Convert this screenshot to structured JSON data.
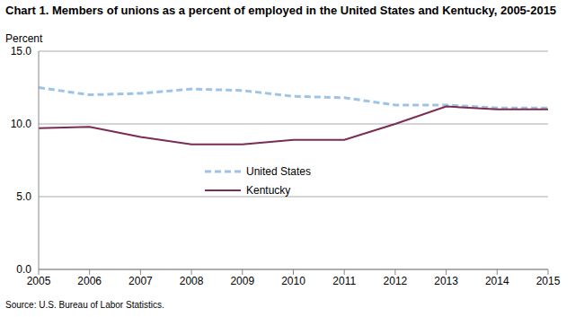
{
  "chart_data": {
    "type": "line",
    "title": "Chart 1. Members of unions as a percent of employed in the United States and Kentucky, 2005-2015",
    "y_label": "Percent",
    "source": "Source: U.S. Bureau of Labor Statistics.",
    "x": [
      2005,
      2006,
      2007,
      2008,
      2009,
      2010,
      2011,
      2012,
      2013,
      2014,
      2015
    ],
    "xlim": [
      2005,
      2015
    ],
    "xticks": [
      2005,
      2006,
      2007,
      2008,
      2009,
      2010,
      2011,
      2012,
      2013,
      2014,
      2015
    ],
    "ylim": [
      0,
      15
    ],
    "yticks": [
      {
        "value": 0,
        "label": "0.0"
      },
      {
        "value": 5,
        "label": "5.0"
      },
      {
        "value": 10,
        "label": "10.0"
      },
      {
        "value": 15,
        "label": "15.0"
      }
    ],
    "grid": true,
    "legend": "center",
    "series": [
      {
        "name": "United States",
        "color": "#9dc3e6",
        "line_style": "dashed",
        "values": [
          12.5,
          12.0,
          12.1,
          12.4,
          12.3,
          11.9,
          11.8,
          11.3,
          11.3,
          11.1,
          11.1
        ]
      },
      {
        "name": "Kentucky",
        "color": "#7b2c52",
        "line_style": "solid",
        "values": [
          9.7,
          9.8,
          9.1,
          8.6,
          8.6,
          8.9,
          8.9,
          10.0,
          11.2,
          11.0,
          11.0
        ]
      }
    ]
  }
}
